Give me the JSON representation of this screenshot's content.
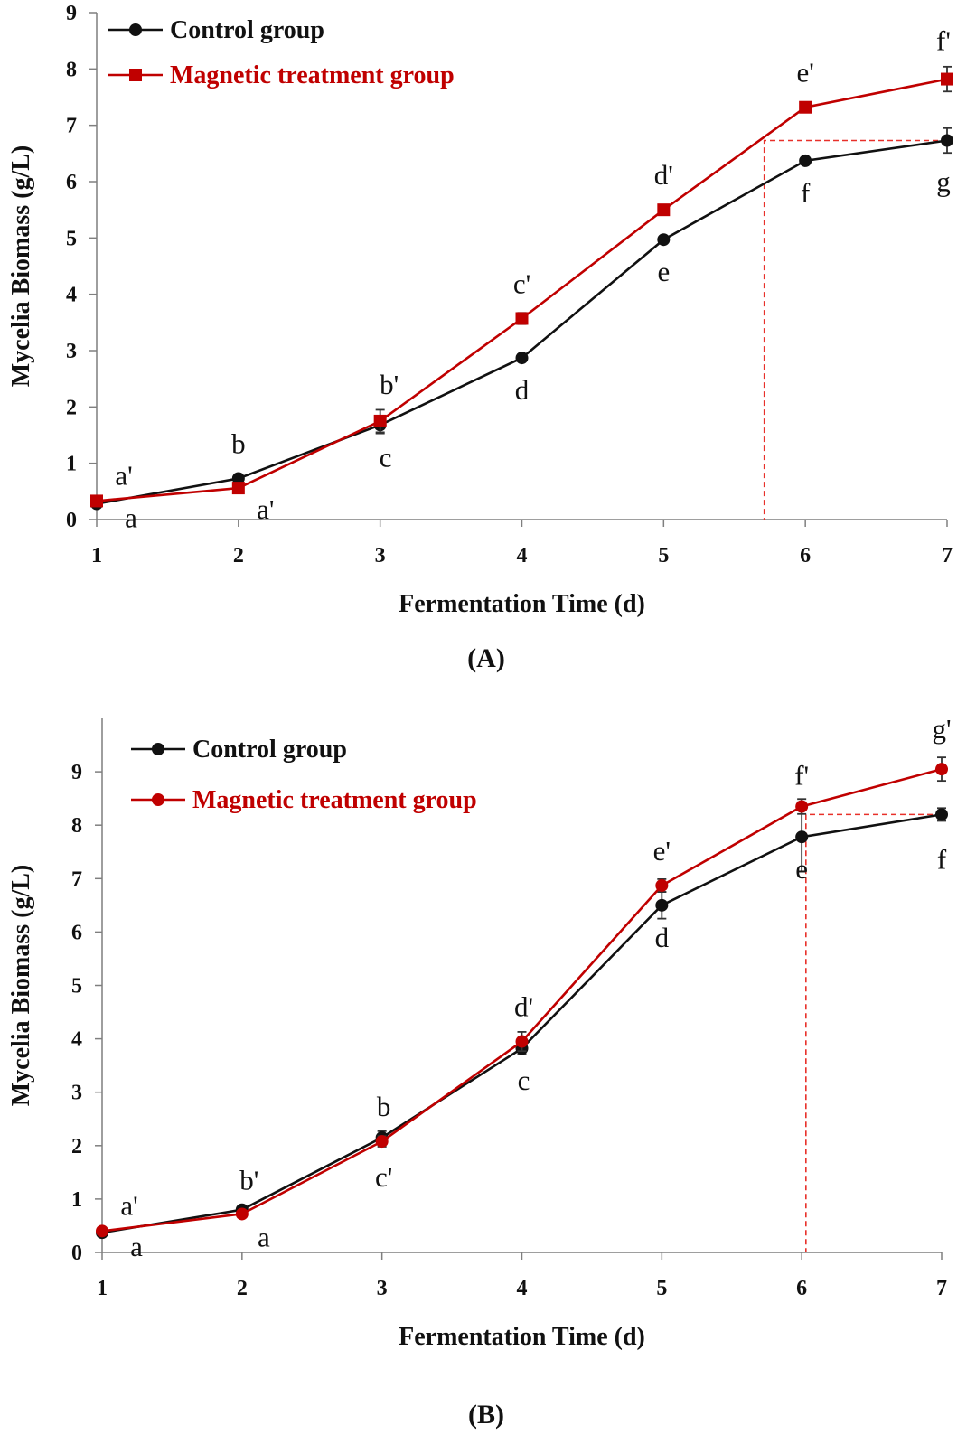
{
  "chart_data": [
    {
      "panel_label": "(A)",
      "type": "line",
      "xlabel": "Fermentation Time (d)",
      "ylabel": "Mycelia Biomass (g/L)",
      "x": [
        1,
        2,
        3,
        4,
        5,
        6,
        7
      ],
      "xticks": [
        "1",
        "2",
        "3",
        "4",
        "5",
        "6",
        "7"
      ],
      "ylim": [
        0,
        9
      ],
      "yticks": [
        "0",
        "1",
        "2",
        "3",
        "4",
        "5",
        "6",
        "7",
        "8",
        "9"
      ],
      "legend_position": "top-left",
      "grid": false,
      "series": [
        {
          "name": "Control group",
          "color": "#111111",
          "marker": "circle",
          "values": [
            0.28,
            0.73,
            1.68,
            2.87,
            4.97,
            6.37,
            6.73
          ],
          "errors": [
            0.04,
            0.05,
            0.15,
            0.06,
            0.06,
            0.05,
            0.22
          ],
          "labels": [
            "a",
            "b",
            "c",
            "d",
            "e",
            "f",
            "g"
          ]
        },
        {
          "name": "Magnetic treatment group",
          "color": "#c00000",
          "marker": "square",
          "values": [
            0.33,
            0.56,
            1.75,
            3.57,
            5.5,
            7.32,
            7.82
          ],
          "errors": [
            0.04,
            0.05,
            0.2,
            0.1,
            0.06,
            0.06,
            0.22
          ],
          "labels": [
            "a'",
            "a'",
            "b'",
            "c'",
            "d'",
            "e'",
            "f'"
          ]
        }
      ],
      "guide": {
        "x": 5.71,
        "y": 6.73,
        "x_end": 7
      }
    },
    {
      "panel_label": "(B)",
      "type": "line",
      "xlabel": "Fermentation Time (d)",
      "ylabel": "Mycelia Biomass (g/L)",
      "x": [
        1,
        2,
        3,
        4,
        5,
        6,
        7
      ],
      "xticks": [
        "1",
        "2",
        "3",
        "4",
        "5",
        "6",
        "7"
      ],
      "ylim": [
        0,
        10
      ],
      "yticks": [
        "0",
        "1",
        "2",
        "3",
        "4",
        "5",
        "6",
        "7",
        "8",
        "9"
      ],
      "legend_position": "top-left",
      "grid": false,
      "series": [
        {
          "name": "Control group",
          "color": "#111111",
          "marker": "circle",
          "values": [
            0.37,
            0.8,
            2.15,
            3.82,
            6.5,
            7.78,
            8.2
          ],
          "errors": [
            0.05,
            0.06,
            0.12,
            0.1,
            0.25,
            0.65,
            0.12
          ],
          "labels": [
            "a",
            "a",
            "b",
            "c",
            "d",
            "e",
            "f"
          ]
        },
        {
          "name": "Magnetic treatment group",
          "color": "#c00000",
          "marker": "circle",
          "values": [
            0.4,
            0.72,
            2.08,
            3.95,
            6.87,
            8.35,
            9.05
          ],
          "errors": [
            0.05,
            0.06,
            0.1,
            0.18,
            0.12,
            0.14,
            0.22
          ],
          "labels": [
            "a'",
            "b'",
            "c'",
            "d'",
            "e'",
            "f'",
            "g'"
          ]
        }
      ],
      "guide": {
        "x": 6.03,
        "y": 8.2,
        "x_end": 7
      }
    }
  ]
}
